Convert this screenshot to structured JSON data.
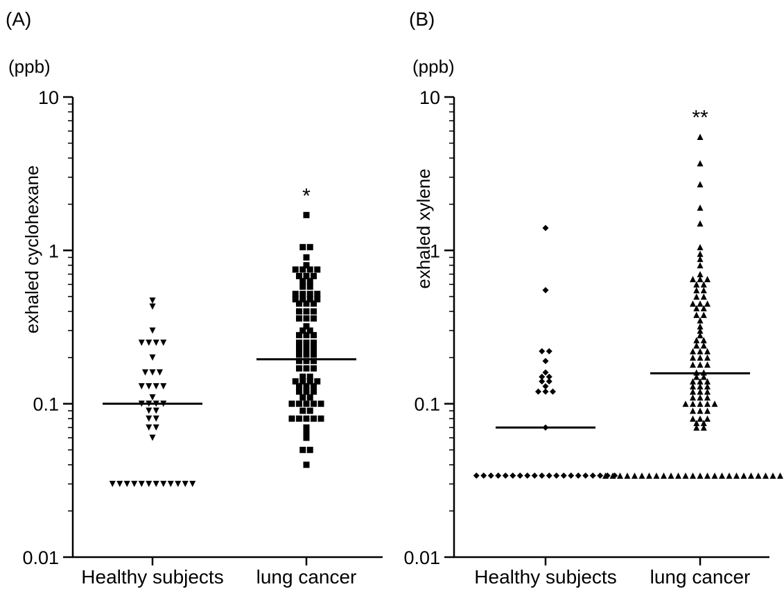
{
  "chart_data": [
    {
      "type": "scatter",
      "panel_label": "(A)",
      "unit": "(ppb)",
      "ylabel": "exhaled cyclohexane",
      "yscale": "log",
      "ylim": [
        0.01,
        10
      ],
      "yticks": [
        "10",
        "1",
        "0.1",
        "0.01"
      ],
      "categories": [
        "Healthy subjects",
        "lung cancer"
      ],
      "significance": [
        "",
        "*"
      ],
      "medians": [
        0.1,
        0.195
      ],
      "markers": [
        "triangle-down",
        "square"
      ],
      "groups": [
        [
          0.47,
          0.43,
          0.3,
          0.25,
          0.25,
          0.24,
          0.24,
          0.2,
          0.16,
          0.16,
          0.16,
          0.13,
          0.13,
          0.13,
          0.13,
          0.11,
          0.1,
          0.1,
          0.1,
          0.1,
          0.09,
          0.09,
          0.08,
          0.08,
          0.07,
          0.07,
          0.06,
          0.03,
          0.03,
          0.03,
          0.03,
          0.03,
          0.03,
          0.03,
          0.03,
          0.03,
          0.03,
          0.03,
          0.03
        ],
        [
          1.7,
          1.05,
          1.0,
          0.9,
          0.8,
          0.75,
          0.75,
          0.75,
          0.72,
          0.68,
          0.65,
          0.65,
          0.63,
          0.6,
          0.58,
          0.55,
          0.52,
          0.52,
          0.5,
          0.5,
          0.48,
          0.48,
          0.46,
          0.46,
          0.45,
          0.45,
          0.43,
          0.4,
          0.38,
          0.38,
          0.36,
          0.35,
          0.35,
          0.32,
          0.3,
          0.3,
          0.28,
          0.28,
          0.27,
          0.25,
          0.25,
          0.24,
          0.23,
          0.22,
          0.22,
          0.21,
          0.2,
          0.2,
          0.19,
          0.18,
          0.18,
          0.17,
          0.16,
          0.16,
          0.15,
          0.15,
          0.14,
          0.14,
          0.14,
          0.14,
          0.13,
          0.13,
          0.13,
          0.12,
          0.12,
          0.12,
          0.11,
          0.11,
          0.1,
          0.1,
          0.1,
          0.1,
          0.1,
          0.09,
          0.09,
          0.08,
          0.08,
          0.08,
          0.08,
          0.08,
          0.07,
          0.065,
          0.06,
          0.05,
          0.05,
          0.04
        ]
      ]
    },
    {
      "type": "scatter",
      "panel_label": "(B)",
      "unit": "(ppb)",
      "ylabel": "exhaled xylene",
      "yscale": "log",
      "ylim": [
        0.01,
        10
      ],
      "yticks": [
        "10",
        "1",
        "0.1",
        "0.01"
      ],
      "categories": [
        "Healthy subjects",
        "lung cancer"
      ],
      "significance": [
        "",
        "**"
      ],
      "medians": [
        0.07,
        0.158
      ],
      "markers": [
        "diamond",
        "triangle-up"
      ],
      "groups": [
        [
          1.4,
          0.55,
          0.22,
          0.21,
          0.19,
          0.16,
          0.15,
          0.15,
          0.14,
          0.14,
          0.13,
          0.12,
          0.12,
          0.12,
          0.07,
          0.034,
          0.034,
          0.034,
          0.034,
          0.034,
          0.034,
          0.034,
          0.034,
          0.034,
          0.034,
          0.034,
          0.034,
          0.034,
          0.034,
          0.034,
          0.034,
          0.034,
          0.034,
          0.034,
          0.034
        ],
        [
          5.5,
          3.7,
          2.7,
          1.9,
          1.5,
          1.05,
          0.95,
          0.88,
          0.8,
          0.7,
          0.65,
          0.65,
          0.62,
          0.6,
          0.58,
          0.55,
          0.52,
          0.5,
          0.48,
          0.45,
          0.45,
          0.43,
          0.42,
          0.4,
          0.38,
          0.36,
          0.35,
          0.32,
          0.3,
          0.28,
          0.26,
          0.25,
          0.24,
          0.23,
          0.22,
          0.22,
          0.21,
          0.2,
          0.2,
          0.19,
          0.18,
          0.18,
          0.17,
          0.16,
          0.16,
          0.15,
          0.15,
          0.14,
          0.14,
          0.14,
          0.13,
          0.13,
          0.13,
          0.12,
          0.12,
          0.12,
          0.11,
          0.11,
          0.11,
          0.1,
          0.1,
          0.1,
          0.1,
          0.095,
          0.09,
          0.09,
          0.085,
          0.08,
          0.08,
          0.078,
          0.075,
          0.072,
          0.07,
          0.068,
          0.034,
          0.034,
          0.034,
          0.034,
          0.034,
          0.034,
          0.034,
          0.034,
          0.034,
          0.034,
          0.034,
          0.034,
          0.034,
          0.034,
          0.034,
          0.034,
          0.034,
          0.034,
          0.034,
          0.034,
          0.034,
          0.034,
          0.034,
          0.034,
          0.034,
          0.034,
          0.034
        ]
      ]
    }
  ]
}
